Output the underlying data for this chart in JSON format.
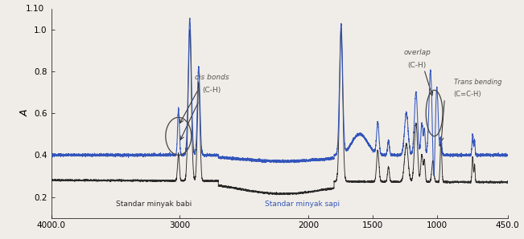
{
  "title": "",
  "xlabel": "",
  "ylabel": "A",
  "xlim": [
    4000.0,
    450.0
  ],
  "ylim": [
    0.1,
    1.1
  ],
  "yticks": [
    0.2,
    0.4,
    0.6,
    0.8,
    1.0
  ],
  "ytick_labels": [
    "0.2",
    "0.4",
    "0.6",
    "0.8",
    "1.0"
  ],
  "xticks": [
    4000,
    3000,
    2000,
    1500,
    1000,
    450
  ],
  "xtick_labels": [
    "4000.0",
    "3000",
    "2000",
    "1500",
    "1000",
    "450.0"
  ],
  "lard_color": "#2a2a2a",
  "cow_color": "#3355bb",
  "background_color": "#f0ede8",
  "legend_lard": "Standar minyak babi",
  "legend_cow": "Standar minyak sapi",
  "annotation_cis_line1": "cis bonds",
  "annotation_cis_line2": "(C-H)",
  "annotation_overlap_line1": "overlap",
  "annotation_overlap_line2": "(C-H)",
  "annotation_trans_line1": "Trans bending",
  "annotation_trans_line2": "(C=C-H)"
}
